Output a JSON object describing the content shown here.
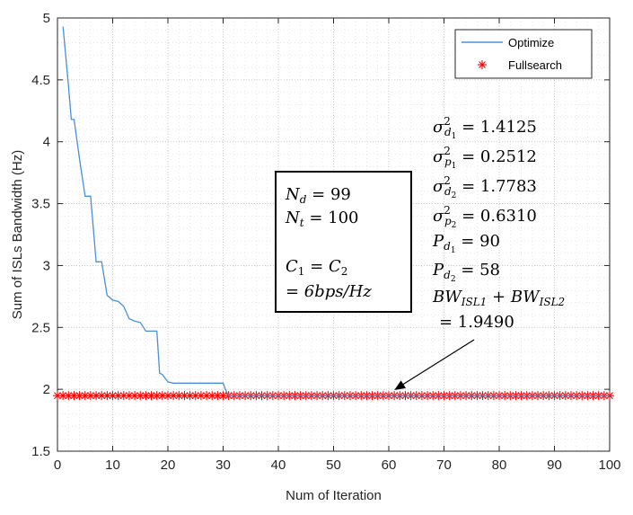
{
  "chart_data": {
    "type": "line",
    "xlabel": "Num of Iteration",
    "ylabel": "Sum of ISLs Bandwidth (Hz)",
    "xlim": [
      0,
      100
    ],
    "ylim": [
      1.5,
      5
    ],
    "xticks": [
      "0",
      "10",
      "20",
      "30",
      "40",
      "50",
      "60",
      "70",
      "80",
      "90",
      "100"
    ],
    "yticks": [
      "1.5",
      "2",
      "2.5",
      "3",
      "3.5",
      "4",
      "4.5",
      "5"
    ],
    "grid": "on (dotted)",
    "legend_position": "top-right",
    "series": [
      {
        "name": "Optimize",
        "color": "#4a90d9",
        "style": "line",
        "x": [
          1,
          2,
          2.5,
          3,
          4,
          5,
          5.5,
          6,
          7,
          7.5,
          8,
          9,
          10,
          11,
          12,
          13,
          14,
          15,
          16,
          17,
          18,
          18.5,
          19,
          20,
          21,
          22,
          24,
          26,
          28,
          30,
          30.5,
          31,
          32
        ],
        "y": [
          4.93,
          4.45,
          4.18,
          4.18,
          3.86,
          3.56,
          3.56,
          3.56,
          3.03,
          3.03,
          3.03,
          2.76,
          2.72,
          2.71,
          2.67,
          2.57,
          2.55,
          2.54,
          2.47,
          2.47,
          2.47,
          2.13,
          2.12,
          2.06,
          2.05,
          2.05,
          2.05,
          2.05,
          2.05,
          2.05,
          1.99,
          1.95,
          1.95
        ]
      },
      {
        "name": "Fullsearch",
        "color": "#ff0000",
        "style": "marker-asterisk",
        "x_start": 0,
        "x_end": 100,
        "count": 101,
        "y": 1.949
      }
    ],
    "annotations": {
      "params_box": {
        "nd_label": "N",
        "nd_sub": "d",
        "nd_value": "= 99",
        "nt_label": "N",
        "nt_sub": "t",
        "nt_value": "= 100",
        "c_line1_a": "C",
        "c_line1_a_sub": "1",
        "c_line1_eq": "=",
        "c_line1_b": "C",
        "c_line1_b_sub": "2",
        "c_line2": "= 6bps/Hz"
      },
      "results": [
        {
          "sym": "σ",
          "sub": "d",
          "subsub": "1",
          "sup": "2",
          "value": "= 1.4125"
        },
        {
          "sym": "σ",
          "sub": "p",
          "subsub": "1",
          "sup": "2",
          "value": "= 0.2512"
        },
        {
          "sym": "σ",
          "sub": "d",
          "subsub": "2",
          "sup": "2",
          "value": "= 1.7783"
        },
        {
          "sym": "σ",
          "sub": "p",
          "subsub": "2",
          "sup": "2",
          "value": "= 0.6310"
        },
        {
          "sym": "P",
          "sub": "d",
          "subsub": "1",
          "sup": "",
          "value": "= 90"
        },
        {
          "sym": "P",
          "sub": "d",
          "subsub": "2",
          "sup": "",
          "value": "= 58"
        }
      ],
      "bw_sum": {
        "a": "BW",
        "a_sub": "ISL1",
        "plus": "+",
        "b": "BW",
        "b_sub": "ISL2",
        "value": "= 1.9490"
      },
      "arrow_target": {
        "x": 61,
        "y": 1.95
      }
    }
  }
}
